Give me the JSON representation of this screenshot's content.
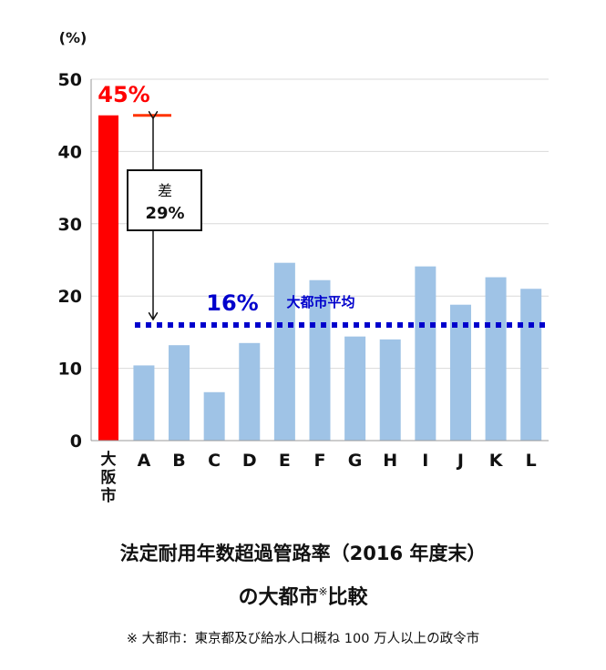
{
  "chart_data": {
    "type": "bar",
    "ylabel": "(%)",
    "ylim": [
      0,
      50
    ],
    "yticks": [
      "0",
      "10",
      "20",
      "30",
      "40",
      "50"
    ],
    "grid": true,
    "categories": [
      "大阪市",
      "A",
      "B",
      "C",
      "D",
      "E",
      "F",
      "G",
      "H",
      "I",
      "J",
      "K",
      "L"
    ],
    "values": [
      45,
      10.4,
      13.2,
      6.7,
      13.5,
      24.6,
      22.2,
      14.4,
      14.0,
      24.1,
      18.8,
      22.6,
      21.0
    ],
    "highlight": {
      "category": "大阪市",
      "value_label": "45%",
      "color": "#ff0000"
    },
    "bar_color": "#9fc3e6",
    "average": {
      "value": 16,
      "value_label": "16%",
      "label": "大都市平均",
      "color": "#0000cc"
    },
    "difference": {
      "label": "差",
      "value_label": "29%"
    }
  },
  "title_line1": "法定耐用年数超過管路率（2016 年度末）",
  "title_line2_main": "の大都市",
  "title_line2_mark": "※",
  "title_line2_end": "比較",
  "footnote": "※  大都市：東京都及び給水人口概ね 100 万人以上の政令市"
}
